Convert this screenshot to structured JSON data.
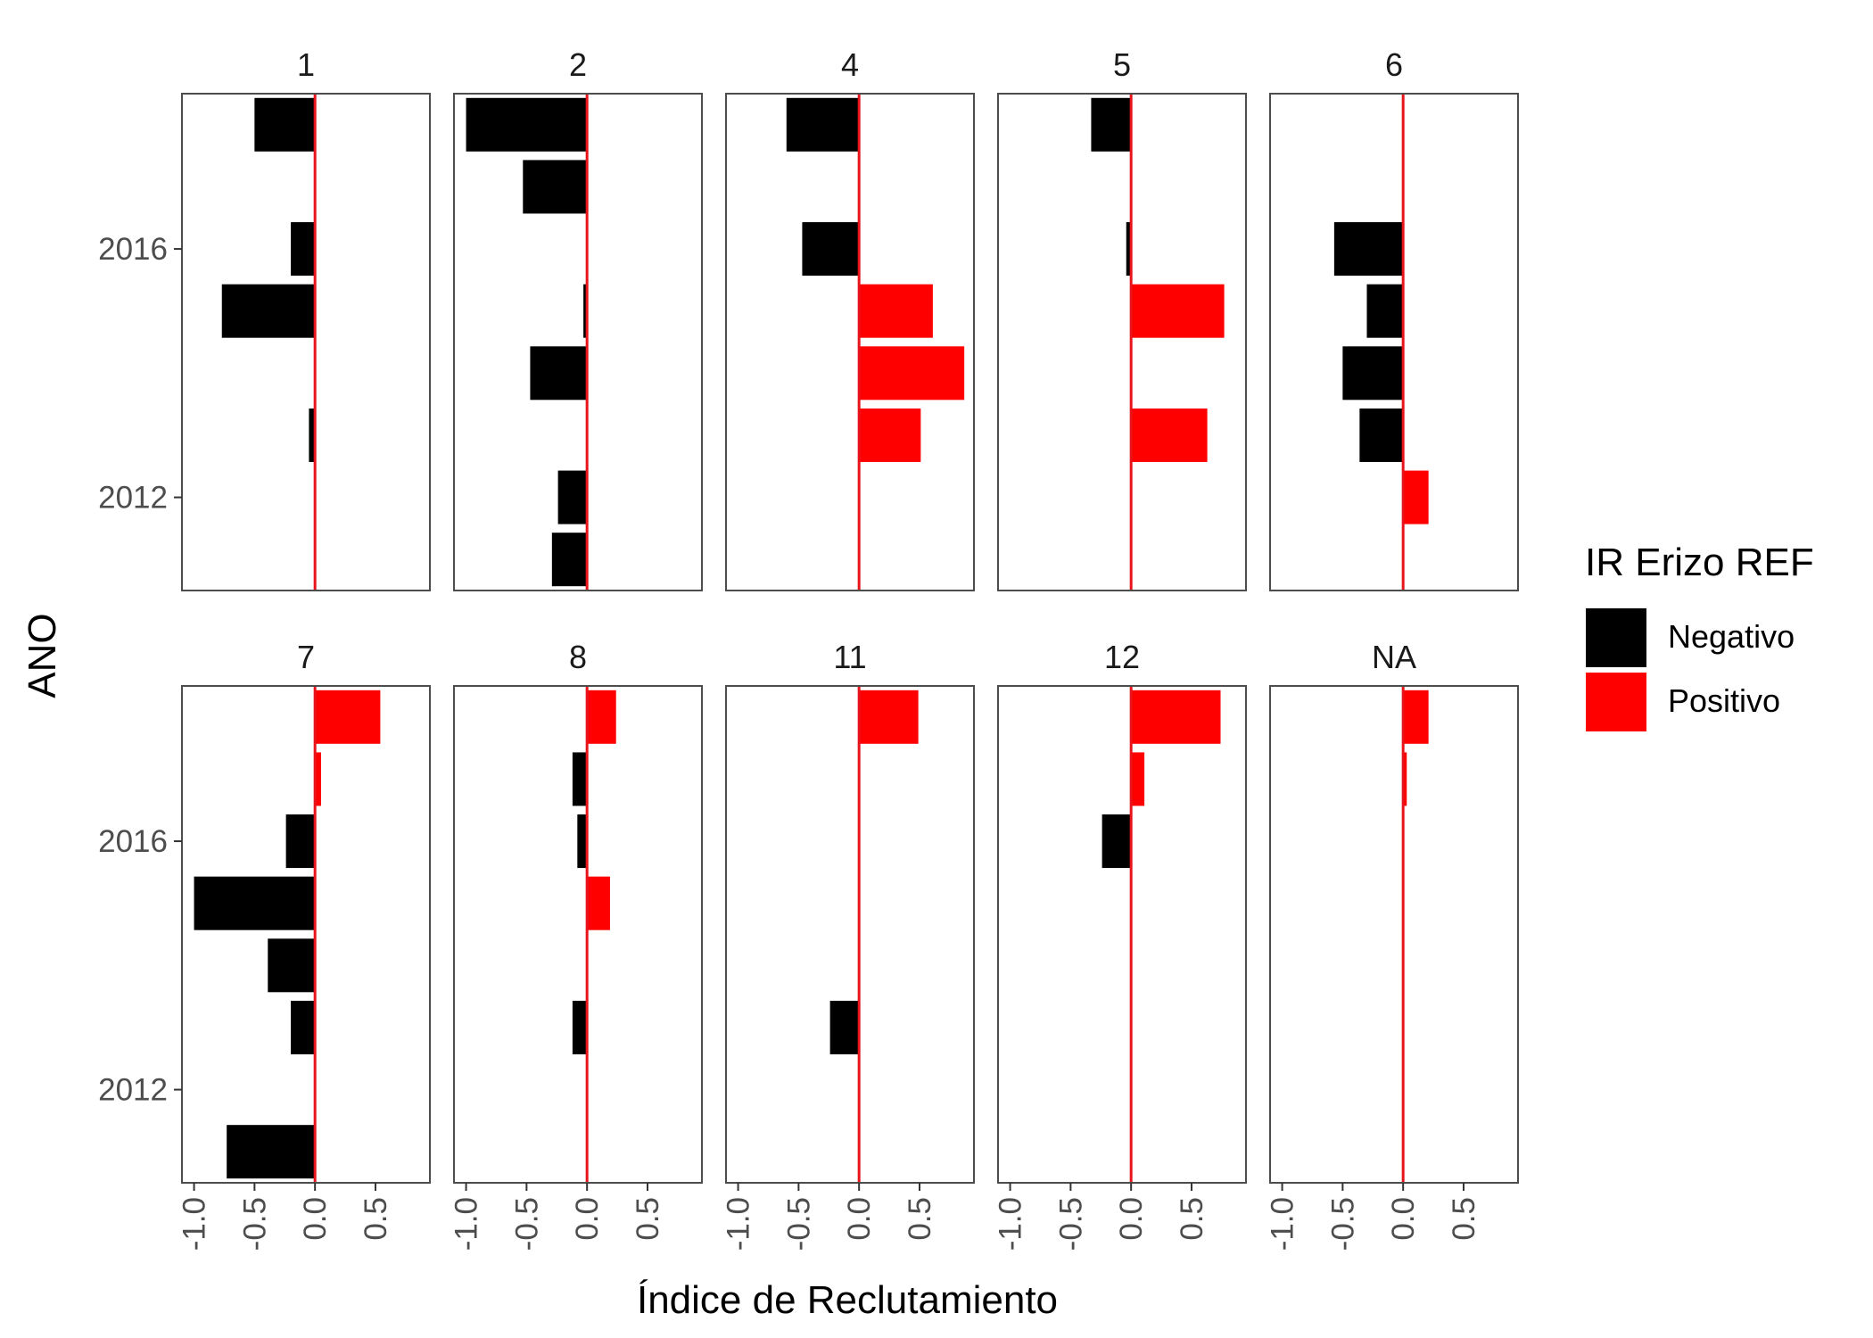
{
  "chart_data": {
    "type": "bar",
    "orientation": "horizontal",
    "facet_layout": "wrap 5 columns x 2 rows",
    "xlabel": "Índice de Reclutamiento",
    "ylabel": "ANO",
    "xlim": [
      -1.1,
      0.95
    ],
    "ylim": [
      2010.5,
      2018.5
    ],
    "x_ticks": [
      -1.0,
      -0.5,
      0.0,
      0.5
    ],
    "x_tick_labels": [
      "-1.0",
      "-0.5",
      "0.0",
      "0.5"
    ],
    "y_ticks": [
      2012,
      2016
    ],
    "y_tick_labels": [
      "2012",
      "2016"
    ],
    "grid": false,
    "reference_line": {
      "x": 0,
      "color": "#e8141c"
    },
    "legend": {
      "title": "IR Erizo REF",
      "position": "right",
      "entries": [
        {
          "label": "Negativo",
          "color": "#000000"
        },
        {
          "label": "Positivo",
          "color": "#ff0000"
        }
      ]
    },
    "panels": [
      {
        "label": "1",
        "bars": [
          {
            "year": 2018,
            "value": -0.5
          },
          {
            "year": 2016,
            "value": -0.2
          },
          {
            "year": 2015,
            "value": -0.77
          },
          {
            "year": 2013,
            "value": -0.05
          }
        ]
      },
      {
        "label": "2",
        "bars": [
          {
            "year": 2018,
            "value": -1.0
          },
          {
            "year": 2017,
            "value": -0.53
          },
          {
            "year": 2015,
            "value": -0.03
          },
          {
            "year": 2014,
            "value": -0.47
          },
          {
            "year": 2012,
            "value": -0.24
          },
          {
            "year": 2011,
            "value": -0.29
          }
        ]
      },
      {
        "label": "4",
        "bars": [
          {
            "year": 2018,
            "value": -0.6
          },
          {
            "year": 2016,
            "value": -0.47
          },
          {
            "year": 2015,
            "value": 0.61
          },
          {
            "year": 2014,
            "value": 0.87
          },
          {
            "year": 2013,
            "value": 0.51
          }
        ]
      },
      {
        "label": "5",
        "bars": [
          {
            "year": 2018,
            "value": -0.33
          },
          {
            "year": 2016,
            "value": -0.04
          },
          {
            "year": 2015,
            "value": 0.77
          },
          {
            "year": 2013,
            "value": 0.63
          }
        ]
      },
      {
        "label": "6",
        "bars": [
          {
            "year": 2016,
            "value": -0.57
          },
          {
            "year": 2015,
            "value": -0.3
          },
          {
            "year": 2014,
            "value": -0.5
          },
          {
            "year": 2013,
            "value": -0.36
          },
          {
            "year": 2012,
            "value": 0.21
          }
        ]
      },
      {
        "label": "7",
        "bars": [
          {
            "year": 2018,
            "value": 0.54
          },
          {
            "year": 2017,
            "value": 0.05
          },
          {
            "year": 2016,
            "value": -0.24
          },
          {
            "year": 2015,
            "value": -1.0
          },
          {
            "year": 2014,
            "value": -0.39
          },
          {
            "year": 2013,
            "value": -0.2
          },
          {
            "year": 2011,
            "value": -0.73
          }
        ]
      },
      {
        "label": "8",
        "bars": [
          {
            "year": 2018,
            "value": 0.24
          },
          {
            "year": 2017,
            "value": -0.12
          },
          {
            "year": 2016,
            "value": -0.08
          },
          {
            "year": 2015,
            "value": 0.19
          },
          {
            "year": 2013,
            "value": -0.12
          }
        ]
      },
      {
        "label": "11",
        "bars": [
          {
            "year": 2018,
            "value": 0.49
          },
          {
            "year": 2013,
            "value": -0.24
          }
        ]
      },
      {
        "label": "12",
        "bars": [
          {
            "year": 2018,
            "value": 0.74
          },
          {
            "year": 2017,
            "value": 0.11
          },
          {
            "year": 2016,
            "value": -0.24
          }
        ]
      },
      {
        "label": "NA",
        "bars": [
          {
            "year": 2018,
            "value": 0.21
          },
          {
            "year": 2017,
            "value": 0.03
          }
        ]
      }
    ]
  }
}
